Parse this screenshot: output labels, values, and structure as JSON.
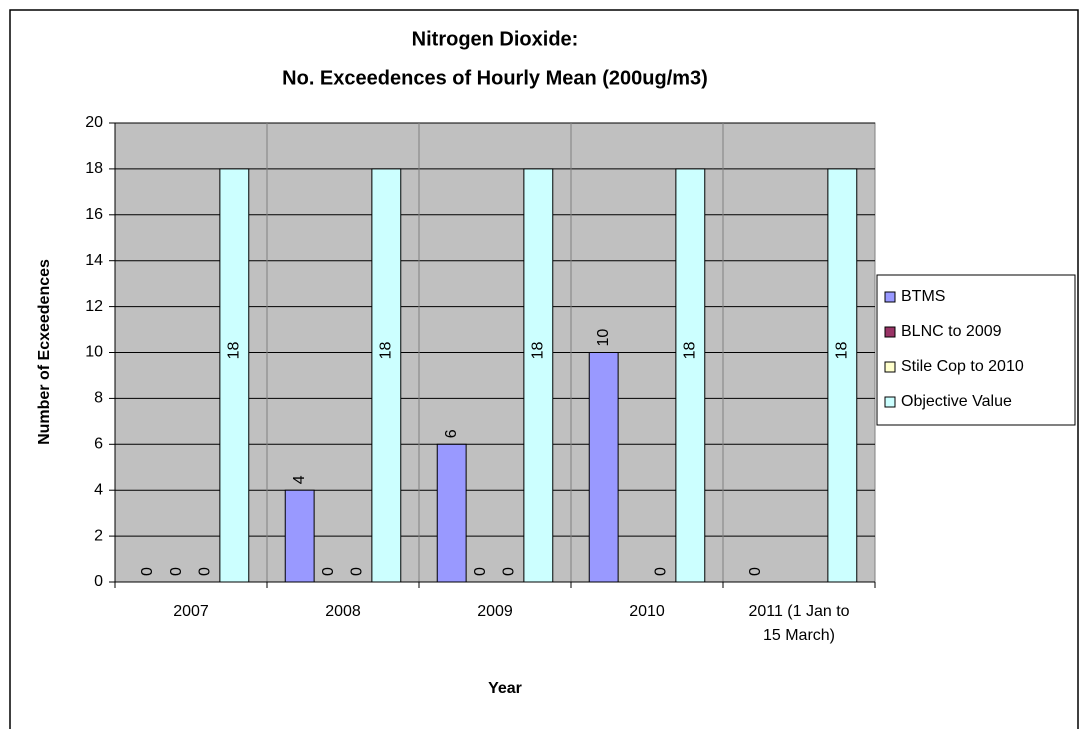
{
  "chart_data": {
    "type": "bar",
    "title": [
      "Nitrogen Dioxide:",
      "No. Exceedences of Hourly Mean (200ug/m3)"
    ],
    "x_label": "Year",
    "y_label": "Number of Ecxeedences",
    "categories": [
      "2007",
      "2008",
      "2009",
      "2010",
      "2011 (1 Jan to 15 March)"
    ],
    "series": [
      {
        "name": "BTMS",
        "color": "#9999ff",
        "values": [
          0,
          4,
          6,
          10,
          0
        ]
      },
      {
        "name": "BLNC to 2009",
        "color": "#993366",
        "values": [
          0,
          0,
          0,
          null,
          null
        ]
      },
      {
        "name": "Stile Cop to 2010",
        "color": "#ffffcc",
        "values": [
          0,
          0,
          0,
          0,
          null
        ]
      },
      {
        "name": "Objective Value",
        "color": "#ccffff",
        "values": [
          18,
          18,
          18,
          18,
          18
        ]
      }
    ],
    "ylim": [
      0,
      20
    ],
    "yticks": [
      0,
      2,
      4,
      6,
      8,
      10,
      12,
      14,
      16,
      18,
      20
    ],
    "grid": true,
    "legend": "right"
  }
}
